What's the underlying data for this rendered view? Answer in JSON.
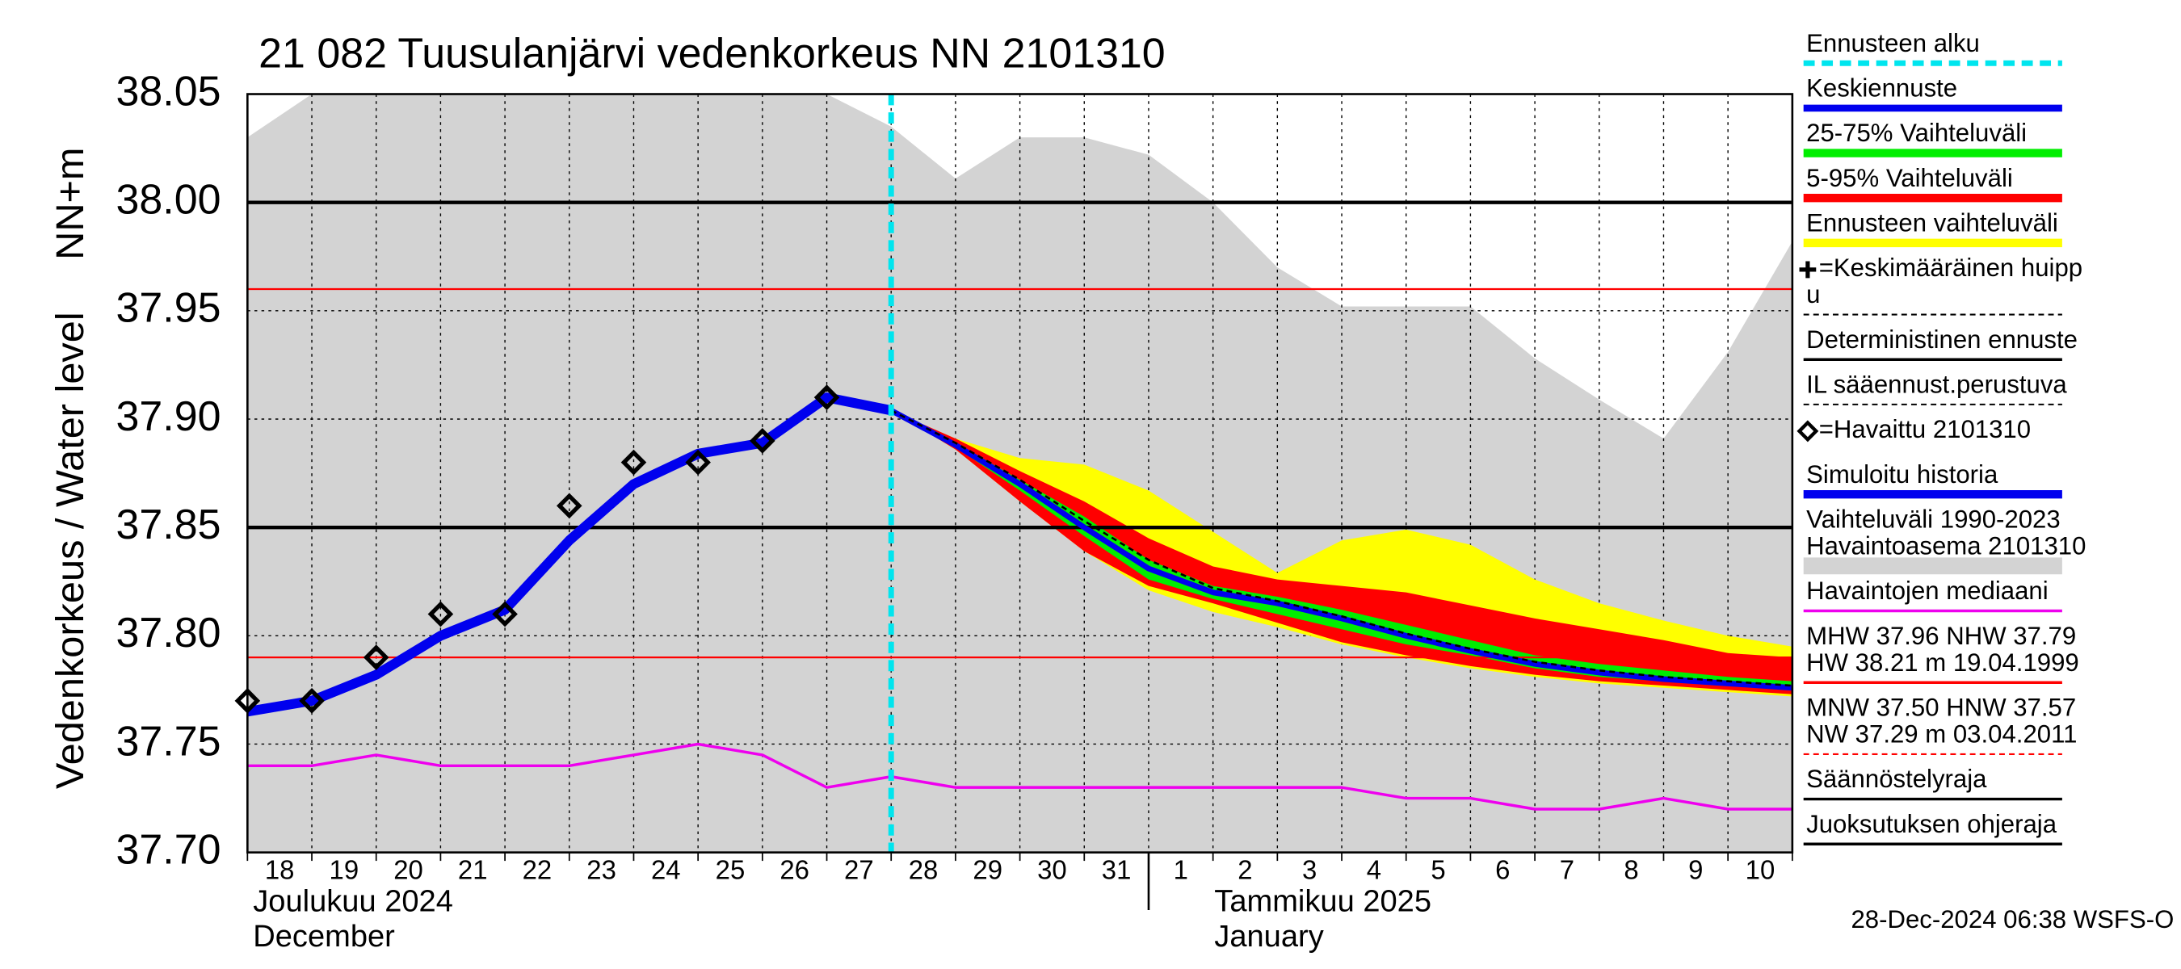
{
  "chart_data": {
    "type": "hydrograph",
    "title": "21 082 Tuusulanjärvi vedenkorkeus NN 2101310",
    "y_label": "Vedenkorkeus / Water level",
    "y_unit": "NN+m",
    "footer": "28-Dec-2024 06:38 WSFS-O",
    "categories": [
      "18",
      "19",
      "20",
      "21",
      "22",
      "23",
      "24",
      "25",
      "26",
      "27",
      "28",
      "29",
      "30",
      "31",
      "1",
      "2",
      "3",
      "4",
      "5",
      "6",
      "7",
      "8",
      "9",
      "10",
      null
    ],
    "x_groups": [
      {
        "label": [
          "Joulukuu  2024",
          "December"
        ]
      },
      {
        "label": [
          "Tammikuu  2025",
          "January"
        ]
      }
    ],
    "ylim": [
      37.7,
      38.05
    ],
    "yticks": [
      {
        "value": 37.7,
        "label": "37.70"
      },
      37.75,
      {
        "value": 37.8,
        "label": "37.80"
      },
      37.85,
      {
        "value": 37.9,
        "label": "37.90"
      },
      37.95,
      {
        "value": 38.0,
        "label": "38.00"
      },
      38.05
    ],
    "grid": true,
    "series": [
      {
        "name": "Ennusteen alku",
        "color": "#00e5ee",
        "style": "dashed-vline"
      },
      {
        "name": "Keskiennuste",
        "color": "#0000ee",
        "style": "line",
        "values": [
          null,
          null,
          null,
          null,
          null,
          null,
          null,
          null,
          null,
          null,
          37.904,
          37.888,
          37.87,
          37.85,
          37.831,
          37.82,
          37.815,
          37.808,
          37.8,
          37.793,
          37.787,
          37.783,
          37.78,
          37.778,
          37.776
        ]
      },
      {
        "name": "25-75% Vaihteluväli",
        "color": "#00ee00",
        "style": "band",
        "upper": [
          null,
          null,
          null,
          null,
          null,
          null,
          null,
          null,
          null,
          null,
          37.904,
          37.889,
          37.872,
          37.855,
          37.835,
          37.823,
          37.818,
          37.812,
          37.805,
          37.798,
          37.791,
          37.787,
          37.784,
          37.781,
          37.779
        ],
        "lower": [
          null,
          null,
          null,
          null,
          null,
          null,
          null,
          null,
          null,
          null,
          37.904,
          37.887,
          37.867,
          37.846,
          37.826,
          37.817,
          37.81,
          37.803,
          37.796,
          37.791,
          37.785,
          37.781,
          37.779,
          37.777,
          37.775
        ]
      },
      {
        "name": "5-95% Vaihteluväli",
        "color": "#ff0000",
        "style": "band",
        "upper": [
          null,
          null,
          null,
          null,
          null,
          null,
          null,
          null,
          null,
          null,
          37.904,
          37.891,
          37.876,
          37.862,
          37.845,
          37.832,
          37.826,
          37.823,
          37.82,
          37.814,
          37.808,
          37.803,
          37.798,
          37.792,
          37.79
        ],
        "lower": [
          null,
          null,
          null,
          null,
          null,
          null,
          null,
          null,
          null,
          null,
          37.904,
          37.886,
          37.862,
          37.839,
          37.823,
          37.815,
          37.806,
          37.797,
          37.791,
          37.786,
          37.782,
          37.779,
          37.777,
          37.775,
          37.773
        ]
      },
      {
        "name": "Ennusteen vaihteluväli",
        "color": "#ffff00",
        "style": "band",
        "upper": [
          null,
          null,
          null,
          null,
          null,
          null,
          null,
          null,
          null,
          null,
          37.904,
          37.891,
          37.882,
          37.879,
          37.867,
          37.848,
          37.829,
          37.844,
          37.849,
          37.842,
          37.826,
          37.815,
          37.807,
          37.8,
          37.795
        ],
        "lower": [
          null,
          null,
          null,
          null,
          null,
          null,
          null,
          null,
          null,
          null,
          37.904,
          37.886,
          37.862,
          37.839,
          37.821,
          37.811,
          37.804,
          37.796,
          37.79,
          37.785,
          37.781,
          37.778,
          37.776,
          37.774,
          37.772
        ]
      },
      {
        "name": [
          "=Keskimääräinen huipp",
          "u"
        ],
        "color": "#000000",
        "style": "plus"
      },
      {
        "name": "Deterministinen ennuste",
        "color": "#000000",
        "style": "thin-line"
      },
      {
        "name": "IL sääennust.perustuva",
        "color": "#000000",
        "style": "dashed-line",
        "values": [
          null,
          null,
          null,
          null,
          null,
          null,
          null,
          null,
          null,
          null,
          37.904,
          37.889,
          37.872,
          37.853,
          37.835,
          37.822,
          37.816,
          37.809,
          37.801,
          37.794,
          37.788,
          37.784,
          37.781,
          37.779,
          37.777
        ]
      },
      {
        "name": "=Havaittu 2101310",
        "color": "#000000",
        "style": "diamonds",
        "values": [
          37.77,
          37.77,
          37.79,
          37.81,
          37.81,
          37.86,
          37.88,
          37.88,
          37.89,
          37.91,
          null,
          null,
          null,
          null,
          null,
          null,
          null,
          null,
          null,
          null,
          null,
          null,
          null,
          null,
          null
        ]
      },
      {
        "name": "Simuloitu historia",
        "color": "#0000ee",
        "style": "thick-line",
        "values": [
          37.765,
          37.77,
          37.782,
          37.8,
          37.812,
          37.844,
          37.87,
          37.884,
          37.889,
          37.91,
          37.904,
          null,
          null,
          null,
          null,
          null,
          null,
          null,
          null,
          null,
          null,
          null,
          null,
          null,
          null
        ]
      },
      {
        "name": [
          "Vaihteluväli 1990-2023",
          " Havaintoasema 2101310"
        ],
        "color": "#d3d3d3",
        "style": "band",
        "upper": [
          38.03,
          38.05,
          38.05,
          38.05,
          38.05,
          38.05,
          38.05,
          38.05,
          38.05,
          38.05,
          38.035,
          38.011,
          38.03,
          38.03,
          38.022,
          38.0,
          37.97,
          37.952,
          37.952,
          37.952,
          37.928,
          37.909,
          37.891,
          37.931,
          37.982
        ],
        "lower": [
          37.7,
          37.7,
          37.7,
          37.7,
          37.7,
          37.7,
          37.7,
          37.7,
          37.7,
          37.7,
          37.7,
          37.7,
          37.7,
          37.7,
          37.7,
          37.7,
          37.7,
          37.7,
          37.7,
          37.7,
          37.7,
          37.7,
          37.7,
          37.7,
          37.7
        ]
      },
      {
        "name": "Havaintojen mediaani",
        "color": "#ee00ee",
        "style": "thin-line",
        "values": [
          37.74,
          37.74,
          37.745,
          37.74,
          37.74,
          37.74,
          37.745,
          37.75,
          37.745,
          37.73,
          37.735,
          37.73,
          37.73,
          37.73,
          37.73,
          37.73,
          37.73,
          37.73,
          37.725,
          37.725,
          37.72,
          37.72,
          37.725,
          37.72,
          37.72
        ]
      },
      {
        "name": [
          "MHW  37.96 NHW  37.79",
          "HW  38.21 m 19.04.1999"
        ],
        "color": "#ff0000",
        "style": "hline",
        "hlines": [
          37.96,
          37.79
        ]
      },
      {
        "name": [
          "MNW  37.50 HNW  37.57",
          "NW  37.29 m 03.04.2011"
        ],
        "color": "#ff0000",
        "style": "dashed-hline"
      },
      {
        "name": "Säännöstelyraja",
        "color": "#000000",
        "style": "hline",
        "hlines": [
          38.0,
          37.85
        ]
      },
      {
        "name": "Juoksutuksen ohjeraja",
        "color": "#000000",
        "style": "hline"
      }
    ]
  }
}
